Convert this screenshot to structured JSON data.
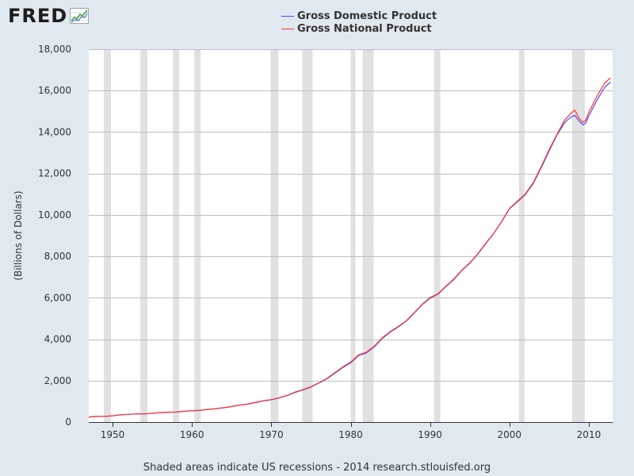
{
  "header": {
    "logo_text": "FRED",
    "logo_icon": "mini-line-chart-icon"
  },
  "footer": {
    "text": "Shaded areas indicate US recessions - 2014 research.stlouisfed.org"
  },
  "chart_data": {
    "type": "line",
    "title": "",
    "xlabel": "",
    "ylabel": "(Billions of Dollars)",
    "xlim": [
      1947,
      2013
    ],
    "ylim": [
      0,
      18000
    ],
    "grid": true,
    "legend_position": "top-center",
    "y_ticks": [
      0,
      2000,
      4000,
      6000,
      8000,
      10000,
      12000,
      14000,
      16000,
      18000
    ],
    "y_tick_labels": [
      "0",
      "2,000",
      "4,000",
      "6,000",
      "8,000",
      "10,000",
      "12,000",
      "14,000",
      "16,000",
      "18,000"
    ],
    "x_ticks": [
      1950,
      1960,
      1970,
      1980,
      1990,
      2000,
      2010
    ],
    "x_tick_labels": [
      "1950",
      "1960",
      "1970",
      "1980",
      "1990",
      "2000",
      "2010"
    ],
    "recessions": [
      [
        1948.9,
        1949.8
      ],
      [
        1953.5,
        1954.4
      ],
      [
        1957.6,
        1958.4
      ],
      [
        1960.3,
        1961.1
      ],
      [
        1969.9,
        1970.9
      ],
      [
        1973.9,
        1975.2
      ],
      [
        1980.0,
        1980.6
      ],
      [
        1981.5,
        1982.9
      ],
      [
        1990.5,
        1991.3
      ],
      [
        2001.2,
        2001.9
      ],
      [
        2007.9,
        2009.5
      ]
    ],
    "colors": {
      "gdp": "#4d4dff",
      "gnp": "#ff3333"
    },
    "series": [
      {
        "name": "Gross Domestic Product",
        "color": "#4d4dff",
        "x": [
          1947,
          1948,
          1949,
          1950,
          1951,
          1952,
          1953,
          1954,
          1955,
          1956,
          1957,
          1958,
          1959,
          1960,
          1961,
          1962,
          1963,
          1964,
          1965,
          1966,
          1967,
          1968,
          1969,
          1970,
          1971,
          1972,
          1973,
          1974,
          1975,
          1976,
          1977,
          1978,
          1979,
          1980,
          1981,
          1982,
          1983,
          1984,
          1985,
          1986,
          1987,
          1988,
          1989,
          1990,
          1991,
          1992,
          1993,
          1994,
          1995,
          1996,
          1997,
          1998,
          1999,
          2000,
          2001,
          2002,
          2003,
          2004,
          2005,
          2006,
          2007,
          2007.75,
          2008.25,
          2008.75,
          2009.25,
          2009.6,
          2010,
          2011,
          2012,
          2012.75
        ],
        "values": [
          244,
          270,
          272,
          300,
          348,
          370,
          390,
          390,
          425,
          450,
          475,
          480,
          520,
          545,
          560,
          605,
          640,
          690,
          745,
          815,
          860,
          940,
          1020,
          1075,
          1165,
          1280,
          1430,
          1550,
          1690,
          1880,
          2085,
          2360,
          2630,
          2860,
          3210,
          3345,
          3640,
          4040,
          4345,
          4590,
          4870,
          5250,
          5660,
          5980,
          6170,
          6540,
          6880,
          7310,
          7660,
          8100,
          8610,
          9090,
          9660,
          10290,
          10625,
          10980,
          11510,
          12275,
          13090,
          13860,
          14480,
          14720,
          14810,
          14550,
          14350,
          14420,
          14780,
          15520,
          16160,
          16420
        ]
      },
      {
        "name": "Gross National Product",
        "color": "#ff3333",
        "x": [
          1947,
          1948,
          1949,
          1950,
          1951,
          1952,
          1953,
          1954,
          1955,
          1956,
          1957,
          1958,
          1959,
          1960,
          1961,
          1962,
          1963,
          1964,
          1965,
          1966,
          1967,
          1968,
          1969,
          1970,
          1971,
          1972,
          1973,
          1974,
          1975,
          1976,
          1977,
          1978,
          1979,
          1980,
          1981,
          1982,
          1983,
          1984,
          1985,
          1986,
          1987,
          1988,
          1989,
          1990,
          1991,
          1992,
          1993,
          1994,
          1995,
          1996,
          1997,
          1998,
          1999,
          2000,
          2001,
          2002,
          2003,
          2004,
          2005,
          2006,
          2007,
          2007.75,
          2008.25,
          2008.75,
          2009.25,
          2009.6,
          2010,
          2011,
          2012,
          2012.75
        ],
        "values": [
          246,
          272,
          274,
          303,
          351,
          373,
          393,
          393,
          428,
          454,
          479,
          484,
          525,
          550,
          566,
          611,
          647,
          697,
          753,
          822,
          868,
          949,
          1030,
          1085,
          1176,
          1292,
          1448,
          1568,
          1705,
          1897,
          2105,
          2385,
          2662,
          2895,
          3245,
          3378,
          3673,
          4075,
          4375,
          4614,
          4892,
          5272,
          5680,
          6010,
          6195,
          6562,
          6905,
          7330,
          7680,
          8120,
          8625,
          9100,
          9675,
          10310,
          10660,
          11010,
          11550,
          12330,
          13150,
          13900,
          14600,
          14900,
          15060,
          14680,
          14470,
          14560,
          14950,
          15710,
          16370,
          16620
        ]
      }
    ]
  }
}
